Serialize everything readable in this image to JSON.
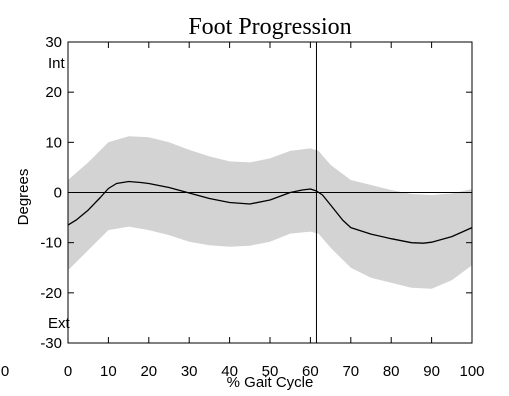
{
  "chart_data": {
    "type": "line",
    "title": "Foot Progression",
    "xlabel": "% Gait Cycle",
    "ylabel": "Degrees",
    "xlim": [
      0,
      100
    ],
    "ylim": [
      -30,
      30
    ],
    "xticks": [
      0,
      10,
      20,
      30,
      40,
      50,
      60,
      70,
      80,
      90,
      100
    ],
    "yticks": [
      30,
      20,
      10,
      0,
      -10,
      -20,
      -30
    ],
    "stray_left_tick": "0",
    "annotations": {
      "top": "Int",
      "bottom": "Ext"
    },
    "vertical_line_x": 61.5,
    "zero_line": true,
    "colors": {
      "band": "#d3d3d3",
      "line": "#000000"
    },
    "series": [
      {
        "x": [
          0,
          2,
          5,
          8,
          10,
          12,
          15,
          18,
          20,
          25,
          30,
          35,
          40,
          45,
          50,
          55,
          58,
          60,
          61.5,
          63,
          65,
          68,
          70,
          75,
          80,
          85,
          88,
          90,
          95,
          100
        ],
        "values": [
          -6.5,
          -5.5,
          -3.5,
          -1,
          0.8,
          1.8,
          2.2,
          2.0,
          1.8,
          1.0,
          -0.1,
          -1.2,
          -2.0,
          -2.3,
          -1.5,
          0,
          0.5,
          0.7,
          0.3,
          -0.5,
          -2.5,
          -5.5,
          -7.0,
          -8.3,
          -9.2,
          -10,
          -10.1,
          -9.9,
          -8.8,
          -7.0
        ]
      }
    ],
    "band": {
      "x": [
        0,
        5,
        10,
        15,
        20,
        25,
        30,
        35,
        40,
        45,
        50,
        55,
        60,
        62,
        65,
        70,
        75,
        80,
        85,
        90,
        95,
        100
      ],
      "upper": [
        2.5,
        6,
        10,
        11.2,
        11,
        10,
        8.5,
        7.2,
        6.2,
        6.0,
        6.8,
        8.3,
        8.8,
        8.3,
        5.5,
        2.5,
        1.5,
        0.5,
        -0.3,
        -0.5,
        -0.2,
        0.7
      ],
      "lower": [
        -15.5,
        -11.5,
        -7.5,
        -6.8,
        -7.5,
        -8.5,
        -9.8,
        -10.5,
        -10.8,
        -10.6,
        -9.8,
        -8.2,
        -7.8,
        -8.2,
        -11,
        -15,
        -17,
        -18,
        -19,
        -19.2,
        -17.5,
        -14.5
      ]
    }
  }
}
